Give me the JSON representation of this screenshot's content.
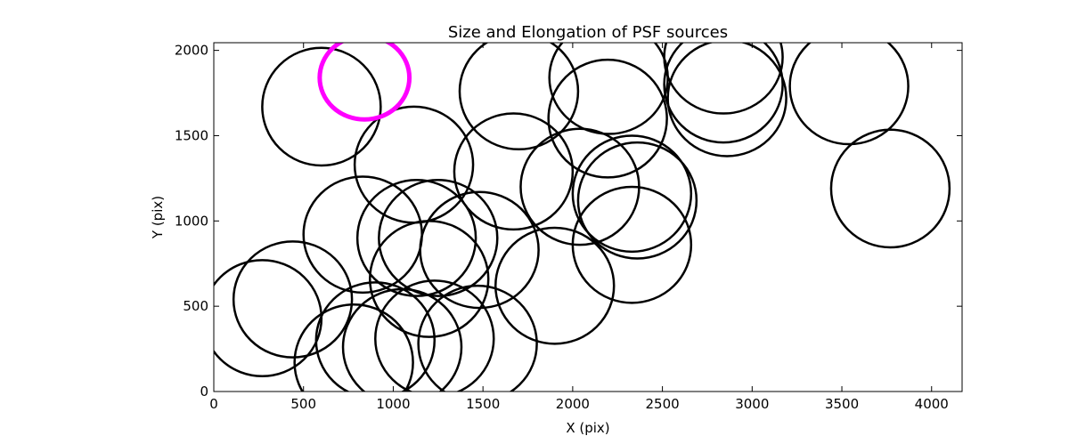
{
  "chart_data": {
    "type": "scatter",
    "title": "Size and Elongation of PSF sources",
    "xlabel": "X (pix)",
    "ylabel": "Y (pix)",
    "xlim": [
      0,
      4170
    ],
    "ylim": [
      0,
      2045
    ],
    "xticks": [
      0,
      500,
      1000,
      1500,
      2000,
      2500,
      3000,
      3500,
      4000
    ],
    "yticks": [
      0,
      500,
      1000,
      1500,
      2000
    ],
    "grid": false,
    "marker": "ellipse",
    "colors": {
      "default": "#000000",
      "highlight": "#ff00ff"
    },
    "ellipses": [
      {
        "x": 600,
        "y": 1670,
        "rx": 330,
        "ry": 345,
        "angle": 0
      },
      {
        "x": 1115,
        "y": 1330,
        "rx": 330,
        "ry": 340,
        "angle": 0
      },
      {
        "x": 1700,
        "y": 1760,
        "rx": 330,
        "ry": 340,
        "angle": 0
      },
      {
        "x": 2200,
        "y": 1840,
        "rx": 330,
        "ry": 330,
        "angle": 0
      },
      {
        "x": 2195,
        "y": 1600,
        "rx": 330,
        "ry": 345,
        "angle": 0
      },
      {
        "x": 2840,
        "y": 1960,
        "rx": 330,
        "ry": 330,
        "angle": 0
      },
      {
        "x": 2840,
        "y": 1800,
        "rx": 330,
        "ry": 340,
        "angle": 0
      },
      {
        "x": 2860,
        "y": 1720,
        "rx": 330,
        "ry": 340,
        "angle": 0
      },
      {
        "x": 3540,
        "y": 1790,
        "rx": 330,
        "ry": 340,
        "angle": 0
      },
      {
        "x": 3770,
        "y": 1190,
        "rx": 330,
        "ry": 345,
        "angle": 0
      },
      {
        "x": 1670,
        "y": 1290,
        "rx": 330,
        "ry": 340,
        "angle": 0
      },
      {
        "x": 2040,
        "y": 1200,
        "rx": 330,
        "ry": 340,
        "angle": 0
      },
      {
        "x": 2330,
        "y": 1160,
        "rx": 330,
        "ry": 340,
        "angle": 0
      },
      {
        "x": 2360,
        "y": 1120,
        "rx": 330,
        "ry": 340,
        "angle": 0
      },
      {
        "x": 2330,
        "y": 860,
        "rx": 330,
        "ry": 340,
        "angle": 0
      },
      {
        "x": 830,
        "y": 920,
        "rx": 330,
        "ry": 340,
        "angle": 0
      },
      {
        "x": 1130,
        "y": 900,
        "rx": 330,
        "ry": 340,
        "angle": 0
      },
      {
        "x": 1250,
        "y": 900,
        "rx": 330,
        "ry": 340,
        "angle": 0
      },
      {
        "x": 1480,
        "y": 830,
        "rx": 330,
        "ry": 340,
        "angle": 0
      },
      {
        "x": 1200,
        "y": 660,
        "rx": 330,
        "ry": 340,
        "angle": 0
      },
      {
        "x": 1900,
        "y": 620,
        "rx": 330,
        "ry": 340,
        "angle": 0
      },
      {
        "x": 440,
        "y": 540,
        "rx": 330,
        "ry": 340,
        "angle": 0
      },
      {
        "x": 270,
        "y": 430,
        "rx": 330,
        "ry": 340,
        "angle": 0
      },
      {
        "x": 780,
        "y": 170,
        "rx": 330,
        "ry": 340,
        "angle": 0
      },
      {
        "x": 900,
        "y": 300,
        "rx": 330,
        "ry": 340,
        "angle": 0
      },
      {
        "x": 1050,
        "y": 260,
        "rx": 330,
        "ry": 340,
        "angle": 0
      },
      {
        "x": 1230,
        "y": 310,
        "rx": 330,
        "ry": 340,
        "angle": 0
      },
      {
        "x": 1470,
        "y": 280,
        "rx": 330,
        "ry": 340,
        "angle": 0
      }
    ],
    "highlight": {
      "x": 840,
      "y": 1840,
      "rx": 250,
      "ry": 245,
      "angle": 0
    }
  }
}
